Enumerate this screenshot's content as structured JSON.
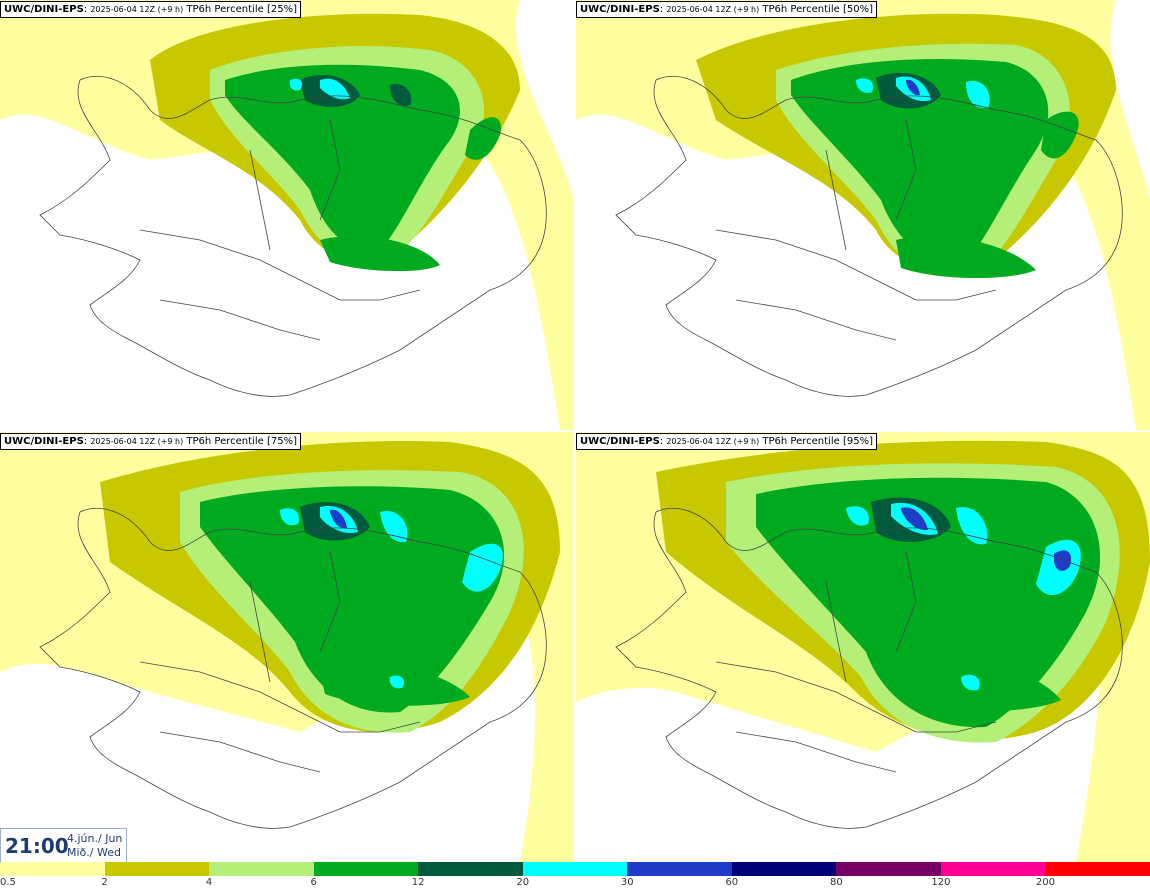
{
  "panels": [
    {
      "model": "UWC/DINI-EPS",
      "run": "2025-06-04 12Z (+9 h)",
      "product": "TP6h Percentile [25%]"
    },
    {
      "model": "UWC/DINI-EPS",
      "run": "2025-06-04 12Z (+9 h)",
      "product": "TP6h Percentile [50%]"
    },
    {
      "model": "UWC/DINI-EPS",
      "run": "2025-06-04 12Z (+9 h)",
      "product": "TP6h Percentile [75%]"
    },
    {
      "model": "UWC/DINI-EPS",
      "run": "2025-06-04 12Z (+9 h)",
      "product": "TP6h Percentile [95%]"
    }
  ],
  "valid_time": {
    "time": "21:00",
    "date_line1": "4.jún./ Jun",
    "date_line2": "Mið./ Wed"
  },
  "legend": {
    "labels": [
      "0.5",
      "2",
      "4",
      "6",
      "12",
      "20",
      "30",
      "60",
      "80",
      "120",
      "200"
    ],
    "colors": [
      "#ffffa0",
      "#c8c800",
      "#b4f078",
      "#00aa1e",
      "#005a3c",
      "#00ffff",
      "#1e3cc8",
      "#000078",
      "#780064",
      "#ff0096",
      "#ff0000"
    ]
  }
}
